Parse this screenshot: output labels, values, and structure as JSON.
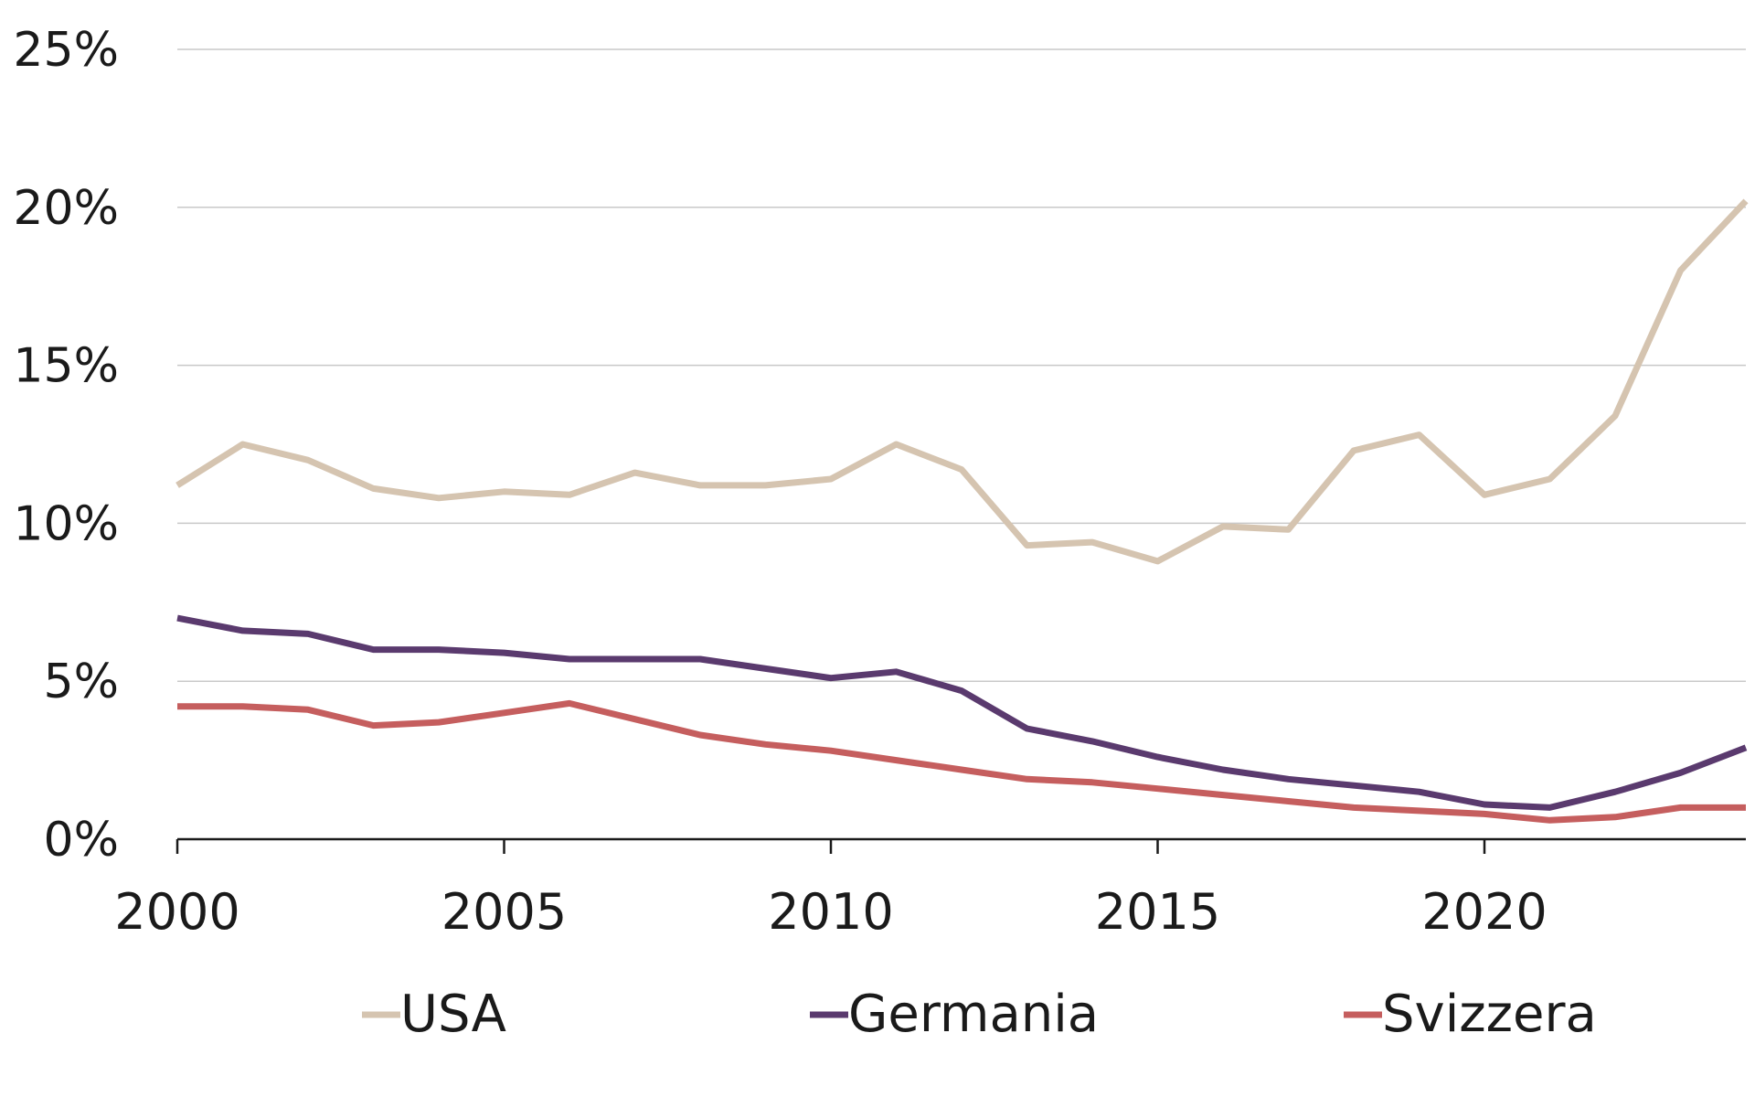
{
  "chart_data": {
    "type": "line",
    "title": "",
    "xlabel": "",
    "ylabel": "",
    "x": [
      2000,
      2001,
      2002,
      2003,
      2004,
      2005,
      2006,
      2007,
      2008,
      2009,
      2010,
      2011,
      2012,
      2013,
      2014,
      2015,
      2016,
      2017,
      2018,
      2019,
      2020,
      2021,
      2022,
      2023,
      2024
    ],
    "xlim": [
      2000,
      2024
    ],
    "ylim": [
      0,
      25
    ],
    "grid": true,
    "legend_position": "bottom",
    "x_ticks": [
      2000,
      2005,
      2010,
      2015,
      2020
    ],
    "x_tick_labels": [
      "2000",
      "2005",
      "2010",
      "2015",
      "2020"
    ],
    "y_ticks": [
      0,
      5,
      10,
      15,
      20,
      25
    ],
    "y_tick_labels": [
      "0%",
      "5%",
      "10%",
      "15%",
      "20%",
      "25%"
    ],
    "series": [
      {
        "name": "USA",
        "color": "#d5c4b0",
        "values": [
          11.2,
          12.5,
          12.0,
          11.1,
          10.8,
          11.0,
          10.9,
          11.6,
          11.2,
          11.2,
          11.4,
          12.5,
          11.7,
          9.3,
          9.4,
          8.8,
          9.9,
          9.8,
          12.3,
          12.8,
          10.9,
          11.4,
          13.4,
          18.0,
          20.2
        ]
      },
      {
        "name": "Germania",
        "color": "#5a3a6e",
        "values": [
          7.0,
          6.6,
          6.5,
          6.0,
          6.0,
          5.9,
          5.7,
          5.7,
          5.7,
          5.4,
          5.1,
          5.3,
          4.7,
          3.5,
          3.1,
          2.6,
          2.2,
          1.9,
          1.7,
          1.5,
          1.1,
          1.0,
          1.5,
          2.1,
          2.9
        ]
      },
      {
        "name": "Svizzera",
        "color": "#c55e5e",
        "values": [
          4.2,
          4.2,
          4.1,
          3.6,
          3.7,
          4.0,
          4.3,
          3.8,
          3.3,
          3.0,
          2.8,
          2.5,
          2.2,
          1.9,
          1.8,
          1.6,
          1.4,
          1.2,
          1.0,
          0.9,
          0.8,
          0.6,
          0.7,
          1.0,
          1.0
        ]
      }
    ]
  }
}
